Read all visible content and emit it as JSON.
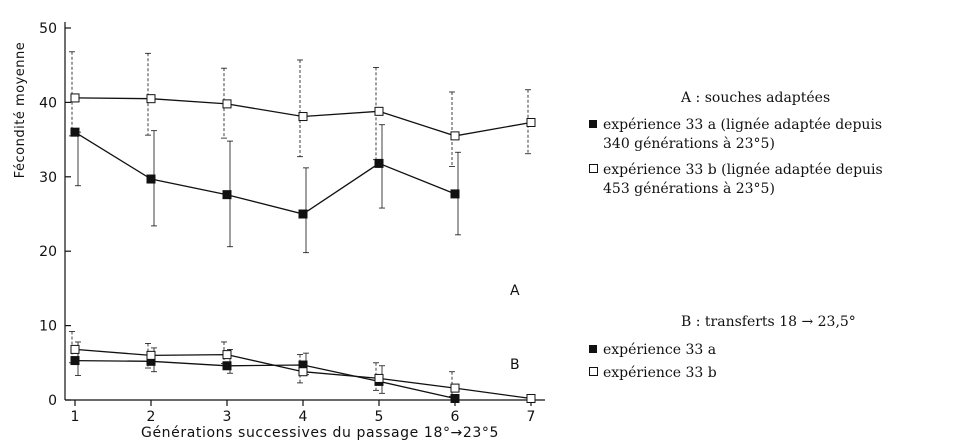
{
  "chart_data": {
    "type": "line",
    "xlabel": "Générations successives du passage 18°→23°5",
    "ylabel": "Fécondité moyenne",
    "xlim": [
      1,
      7
    ],
    "ylim": [
      0,
      50
    ],
    "x_ticks": [
      "1",
      "2",
      "3",
      "4",
      "5",
      "6",
      "7"
    ],
    "y_ticks": [
      "0",
      "10",
      "20",
      "30",
      "40",
      "50"
    ],
    "grid": false,
    "panels": [
      {
        "label": "A",
        "legend_title": "A : souches adaptées",
        "series": [
          {
            "marker": "filled-square",
            "legend": "expérience 33 a (lignée adaptée depuis 340 générations à 23°5)",
            "x": [
              1,
              2,
              3,
              4,
              5,
              6
            ],
            "y": [
              36,
              29.7,
              27.6,
              25,
              31.8,
              27.7
            ],
            "err_up": [
              0,
              6.5,
              7.2,
              6.2,
              5.2,
              5.6
            ],
            "err_down": [
              7.2,
              6.3,
              7,
              5.2,
              6,
              5.5
            ]
          },
          {
            "marker": "open-square",
            "legend": "expérience 33 b (lignée adaptée depuis 453 générations à 23°5)",
            "x": [
              1,
              2,
              3,
              4,
              5,
              6,
              7
            ],
            "y": [
              40.6,
              40.5,
              39.8,
              38.1,
              38.8,
              35.5,
              37.3
            ],
            "err_up": [
              6.2,
              6.1,
              4.8,
              7.6,
              5.9,
              5.9,
              4.4
            ],
            "err_down": [
              5.1,
              4.9,
              4.6,
              5.4,
              6.5,
              4.1,
              4.2
            ]
          }
        ]
      },
      {
        "label": "B",
        "legend_title": "B : transferts 18 → 23,5°",
        "series": [
          {
            "marker": "filled-square",
            "legend": "expérience 33 a",
            "x": [
              1,
              2,
              3,
              4,
              5,
              6
            ],
            "y": [
              5.3,
              5.2,
              4.6,
              4.7,
              2.5,
              0.2
            ],
            "err_up": [
              2.5,
              1.8,
              2.2,
              1.6,
              2.1,
              0
            ],
            "err_down": [
              2,
              1.4,
              1,
              1.3,
              1.6,
              0
            ]
          },
          {
            "marker": "open-square",
            "legend": "expérience 33 b",
            "x": [
              1,
              2,
              3,
              4,
              5,
              6,
              7
            ],
            "y": [
              6.8,
              6,
              6.1,
              3.8,
              2.9,
              1.6,
              0.2
            ],
            "err_up": [
              2.4,
              1.6,
              1.7,
              2.3,
              2.1,
              2.2,
              0
            ],
            "err_down": [
              1.8,
              1.7,
              1.2,
              1.5,
              1.6,
              1.1,
              0
            ]
          }
        ]
      }
    ],
    "legend": {
      "A_title": "A : souches adaptées",
      "A_item1_line1": "expérience 33 a (lignée adaptée depuis",
      "A_item1_line2": "340 générations à 23°5)",
      "A_item2_line1": "expérience 33 b (lignée adaptée depuis",
      "A_item2_line2": "453 générations à 23°5)",
      "B_title": "B : transferts 18 → 23,5°",
      "B_item1": "expérience 33 a",
      "B_item2": "expérience 33 b"
    },
    "colors": {
      "ink": "#111111",
      "background": "#ffffff"
    }
  }
}
